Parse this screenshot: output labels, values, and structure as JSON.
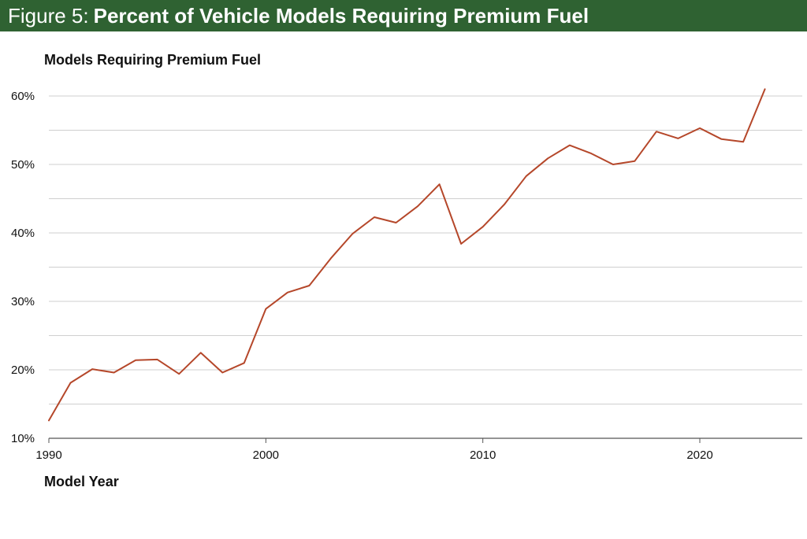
{
  "figure": {
    "prefix": "Figure 5:",
    "title": "Percent of Vehicle Models Requiring Premium Fuel"
  },
  "chart_data": {
    "type": "line",
    "title": "Percent of Vehicle Models Requiring Premium Fuel",
    "ylabel": "Models Requiring Premium Fuel",
    "xlabel": "Model Year",
    "xlim": [
      1990,
      2024
    ],
    "ylim": [
      10,
      62
    ],
    "xticks": [
      1990,
      2000,
      2010,
      2020
    ],
    "yticks": [
      10,
      20,
      30,
      40,
      50,
      60
    ],
    "ytick_labels": [
      "10%",
      "20%",
      "30%",
      "40%",
      "50%",
      "60%"
    ],
    "grid": true,
    "line_color": "#b5472a",
    "axis_color": "#555555",
    "grid_color": "#cfcfcf",
    "banner_color": "#2f6232",
    "series": [
      {
        "name": "Models Requiring Premium Fuel",
        "x": [
          1990,
          1991,
          1992,
          1993,
          1994,
          1995,
          1996,
          1997,
          1998,
          1999,
          2000,
          2001,
          2002,
          2003,
          2004,
          2005,
          2006,
          2007,
          2008,
          2009,
          2010,
          2011,
          2012,
          2013,
          2014,
          2015,
          2016,
          2017,
          2018,
          2019,
          2020,
          2021,
          2022,
          2023
        ],
        "values": [
          12.6,
          18.1,
          20.1,
          19.6,
          21.4,
          21.5,
          19.4,
          22.5,
          19.6,
          21.0,
          28.9,
          31.3,
          32.3,
          36.3,
          39.9,
          42.3,
          41.5,
          43.9,
          47.1,
          38.4,
          40.9,
          44.2,
          48.3,
          50.9,
          52.8,
          51.6,
          50.0,
          50.5,
          54.8,
          53.8,
          55.3,
          53.7,
          53.3,
          61.0
        ]
      }
    ]
  }
}
